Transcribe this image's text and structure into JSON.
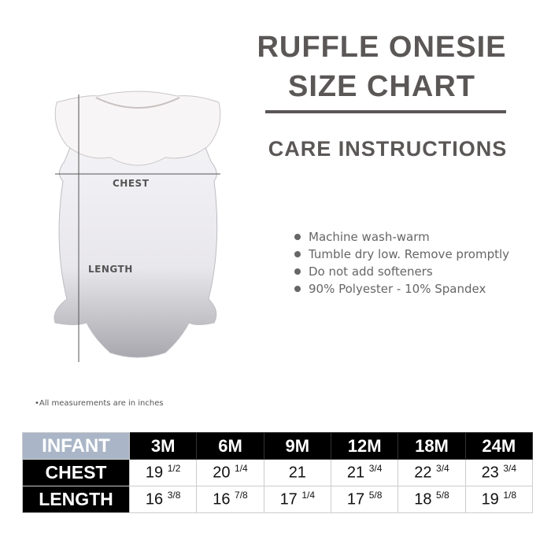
{
  "title_line1": "RUFFLE ONESIE",
  "title_line2": "SIZE CHART",
  "care_heading": "CARE INSTRUCTIONS",
  "care_items": [
    "Machine wash-warm",
    "Tumble dry low. Remove promptly",
    "Do not add softeners",
    "90% Polyester - 10% Spandex"
  ],
  "diagram": {
    "chest_label": "CHEST",
    "length_label": "LENGTH"
  },
  "note": "•All measurements are in inches",
  "colors": {
    "heading": "#5a5756",
    "infant_cell": "#aab6c7",
    "header_bg": "#000000"
  },
  "table": {
    "corner": "INFANT",
    "sizes": [
      "3M",
      "6M",
      "9M",
      "12M",
      "18M",
      "24M"
    ],
    "rows": [
      {
        "label": "CHEST",
        "values": [
          [
            "19",
            "1/2"
          ],
          [
            "20",
            "1/4"
          ],
          [
            "21",
            ""
          ],
          [
            "21",
            "3/4"
          ],
          [
            "22",
            "3/4"
          ],
          [
            "23",
            "3/4"
          ]
        ]
      },
      {
        "label": "LENGTH",
        "values": [
          [
            "16",
            "3/8"
          ],
          [
            "16",
            "7/8"
          ],
          [
            "17",
            "1/4"
          ],
          [
            "17",
            "5/8"
          ],
          [
            "18",
            "5/8"
          ],
          [
            "19",
            "1/8"
          ]
        ]
      }
    ]
  }
}
